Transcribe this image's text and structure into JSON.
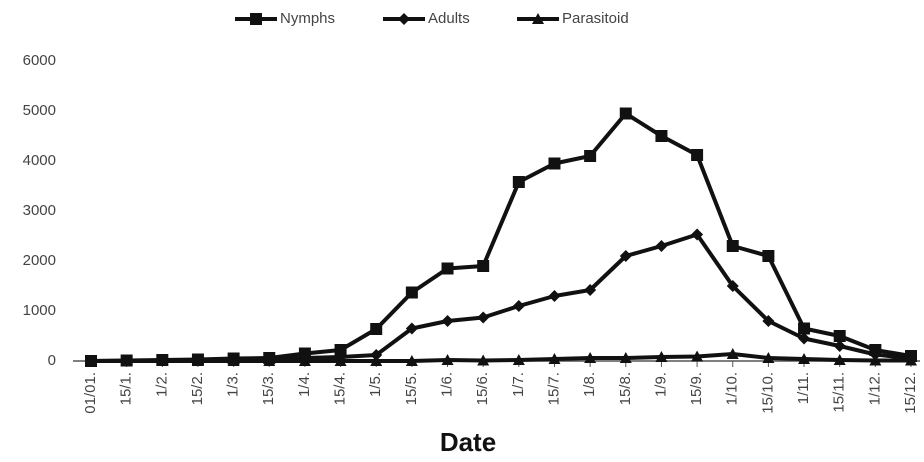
{
  "chart_data": {
    "type": "line",
    "x_label": "Date",
    "categories": [
      "01/01.",
      "15/1.",
      "1/2.",
      "15/2.",
      "1/3.",
      "15/3.",
      "1/4.",
      "15/4.",
      "1/5.",
      "15/5.",
      "1/6.",
      "15/6.",
      "1/7.",
      "15/7.",
      "1/8.",
      "15/8.",
      "1/9.",
      "15/9.",
      "1/10.",
      "15/10.",
      "1/11.",
      "15/11.",
      "1/12.",
      "15/12."
    ],
    "series": [
      {
        "name": "Nymphs",
        "color": "#111111",
        "marker": "square",
        "values": [
          0,
          10,
          20,
          30,
          50,
          60,
          150,
          220,
          640,
          1370,
          1850,
          1900,
          3580,
          3950,
          4100,
          4950,
          4500,
          4120,
          2300,
          2100,
          650,
          500,
          220,
          100
        ]
      },
      {
        "name": "Adults",
        "color": "#111111",
        "marker": "diamond",
        "values": [
          0,
          5,
          10,
          20,
          30,
          40,
          60,
          80,
          120,
          650,
          800,
          870,
          1100,
          1300,
          1420,
          2100,
          2300,
          2530,
          1500,
          800,
          450,
          300,
          130,
          50
        ]
      },
      {
        "name": "Parasitoid",
        "color": "#111111",
        "marker": "triangle",
        "values": [
          0,
          0,
          0,
          0,
          0,
          0,
          0,
          0,
          0,
          0,
          20,
          10,
          20,
          40,
          60,
          60,
          80,
          90,
          140,
          60,
          40,
          20,
          10,
          10
        ]
      }
    ],
    "ylim": [
      0,
      6000
    ],
    "yticks": [
      0,
      1000,
      2000,
      3000,
      4000,
      5000,
      6000
    ],
    "grid": false,
    "legend": "top"
  }
}
